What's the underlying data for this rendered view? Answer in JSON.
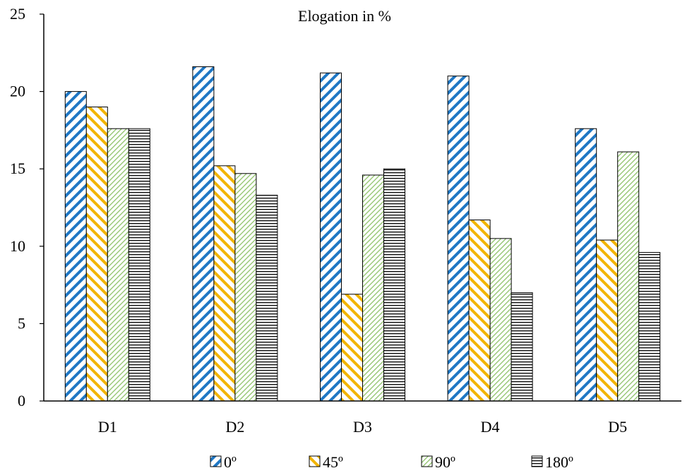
{
  "chart_data": {
    "type": "bar",
    "title": "Elogation in %",
    "xlabel": "",
    "ylabel": "",
    "ylim": [
      0,
      25
    ],
    "yticks": [
      0,
      5,
      10,
      15,
      20,
      25
    ],
    "grid": false,
    "legend_position": "bottom",
    "categories": [
      "D1",
      "D2",
      "D3",
      "D4",
      "D5"
    ],
    "series": [
      {
        "name": "0º",
        "values": [
          20.0,
          21.6,
          21.2,
          21.0,
          17.6
        ],
        "color": "#1f77c4",
        "pattern": "diagonal-right"
      },
      {
        "name": "45º",
        "values": [
          19.0,
          15.2,
          6.9,
          11.7,
          10.4
        ],
        "color": "#f2b400",
        "pattern": "diagonal-left"
      },
      {
        "name": "90º",
        "values": [
          17.6,
          14.7,
          14.6,
          10.5,
          16.1
        ],
        "color": "#8fc36a",
        "pattern": "diagonal-fine"
      },
      {
        "name": "180º",
        "values": [
          17.6,
          13.3,
          15.0,
          7.0,
          9.6
        ],
        "color": "#000000",
        "pattern": "horizontal"
      }
    ]
  }
}
